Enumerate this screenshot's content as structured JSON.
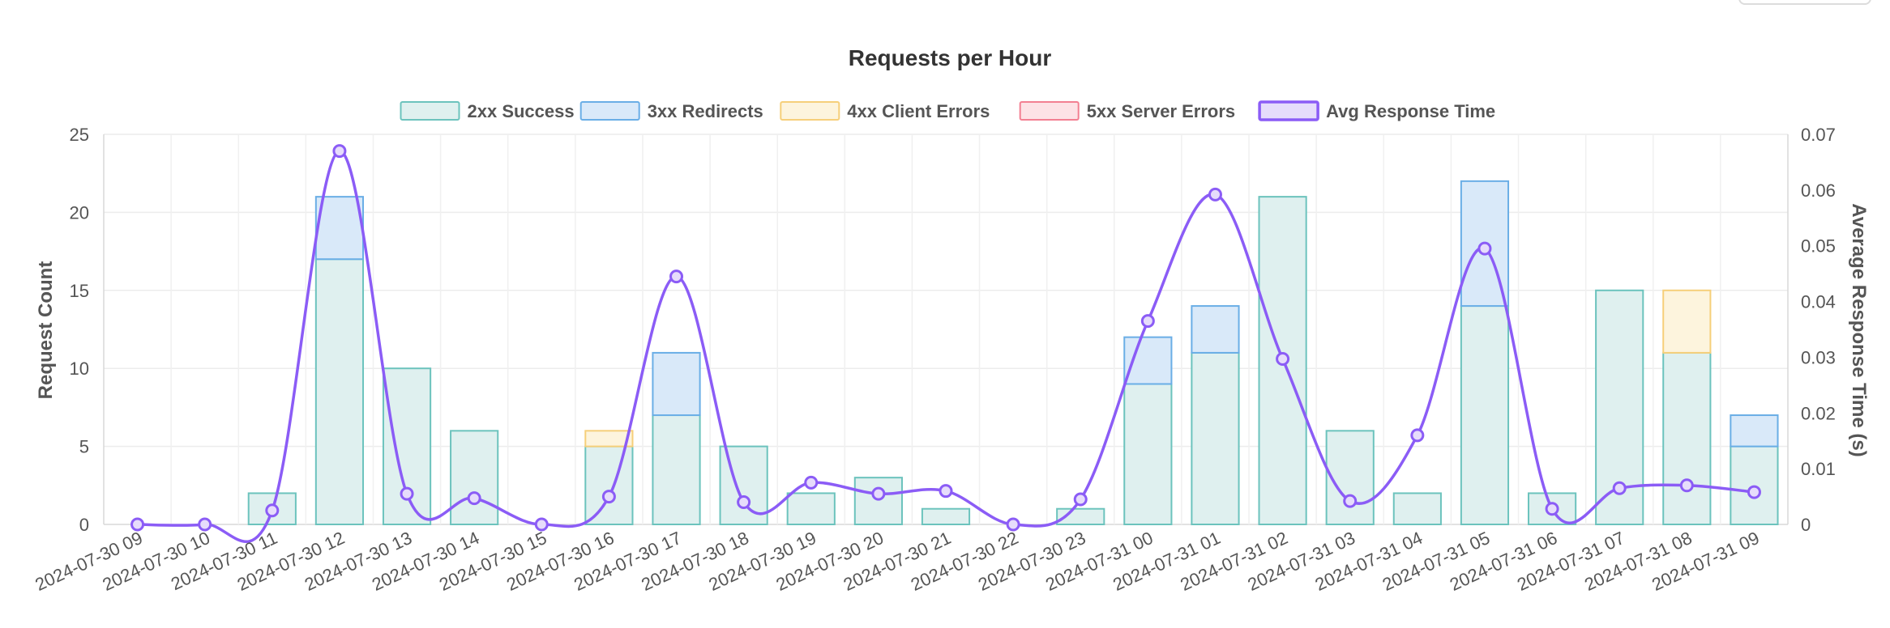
{
  "chart_data": {
    "type": "bar",
    "title": "Requests per Hour",
    "ylabel": "Request Count",
    "y2label": "Average Response Time (s)",
    "ylim": [
      0,
      25
    ],
    "y2lim": [
      0,
      0.07
    ],
    "yticks": [
      "0",
      "5",
      "10",
      "15",
      "20",
      "25"
    ],
    "y2ticks": [
      "0",
      "0.01",
      "0.02",
      "0.03",
      "0.04",
      "0.05",
      "0.06",
      "0.07"
    ],
    "stacked": true,
    "grid": true,
    "legend_position": "top",
    "categories": [
      "2024-07-30 09",
      "2024-07-30 10",
      "2024-07-30 11",
      "2024-07-30 12",
      "2024-07-30 13",
      "2024-07-30 14",
      "2024-07-30 15",
      "2024-07-30 16",
      "2024-07-30 17",
      "2024-07-30 18",
      "2024-07-30 19",
      "2024-07-30 20",
      "2024-07-30 21",
      "2024-07-30 22",
      "2024-07-30 23",
      "2024-07-31 00",
      "2024-07-31 01",
      "2024-07-31 02",
      "2024-07-31 03",
      "2024-07-31 04",
      "2024-07-31 05",
      "2024-07-31 06",
      "2024-07-31 07",
      "2024-07-31 08",
      "2024-07-31 09"
    ],
    "series": [
      {
        "name": "2xx Success",
        "type": "bar",
        "fill": "#dff0ef",
        "stroke": "#6cc3bd",
        "values": [
          0,
          0,
          2,
          17,
          10,
          6,
          0,
          5,
          7,
          5,
          2,
          3,
          1,
          0,
          1,
          9,
          11,
          21,
          6,
          2,
          14,
          2,
          15,
          11,
          5
        ]
      },
      {
        "name": "3xx Redirects",
        "type": "bar",
        "fill": "#d9e9f9",
        "stroke": "#6aaee6",
        "values": [
          0,
          0,
          0,
          4,
          0,
          0,
          0,
          0,
          4,
          0,
          0,
          0,
          0,
          0,
          0,
          3,
          3,
          0,
          0,
          0,
          8,
          0,
          0,
          0,
          2
        ]
      },
      {
        "name": "4xx Client Errors",
        "type": "bar",
        "fill": "#fdf4dd",
        "stroke": "#f6cf7a",
        "values": [
          0,
          0,
          0,
          0,
          0,
          0,
          0,
          1,
          0,
          0,
          0,
          0,
          0,
          0,
          0,
          0,
          0,
          0,
          0,
          0,
          0,
          0,
          0,
          4,
          0
        ]
      },
      {
        "name": "5xx Server Errors",
        "type": "bar",
        "fill": "#fde2e6",
        "stroke": "#f37f92",
        "values": [
          0,
          0,
          0,
          0,
          0,
          0,
          0,
          0,
          0,
          0,
          0,
          0,
          0,
          0,
          0,
          0,
          0,
          0,
          0,
          0,
          0,
          0,
          0,
          0,
          0
        ]
      },
      {
        "name": "Avg Response Time",
        "type": "line",
        "axis": "y2",
        "fill": "#e6dcfb",
        "stroke": "#8b5cf6",
        "values": [
          0,
          0,
          0.0025,
          0.067,
          0.0055,
          0.0047,
          0,
          0.005,
          0.0445,
          0.004,
          0.0075,
          0.0055,
          0.006,
          0,
          0.0045,
          0.0365,
          0.0592,
          0.0297,
          0.0042,
          0.016,
          0.0495,
          0.0028,
          0.0065,
          0.007,
          0.0058
        ]
      }
    ]
  }
}
